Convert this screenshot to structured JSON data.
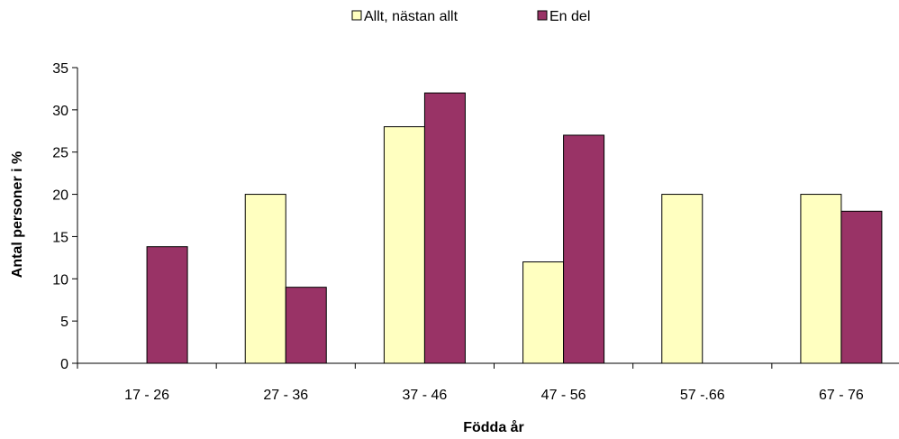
{
  "chart_data": {
    "type": "bar",
    "title": "",
    "xlabel": "Födda år",
    "ylabel": "Antal personer i %",
    "categories": [
      "17 - 26",
      "27 - 36",
      "37 - 46",
      "47 - 56",
      "57 -.66",
      "67 - 76"
    ],
    "series": [
      {
        "name": "Allt, nästan allt",
        "values": [
          0,
          20,
          28,
          12,
          20,
          20
        ],
        "color": "#ffffc0"
      },
      {
        "name": "En del",
        "values": [
          13.8,
          9,
          32,
          27,
          0,
          18
        ],
        "color": "#993366"
      }
    ],
    "ylim": [
      0,
      35
    ],
    "yticks": [
      "0",
      "5",
      "10",
      "15",
      "20",
      "25",
      "30",
      "35"
    ],
    "grid": false,
    "legend_position": "top-center"
  }
}
